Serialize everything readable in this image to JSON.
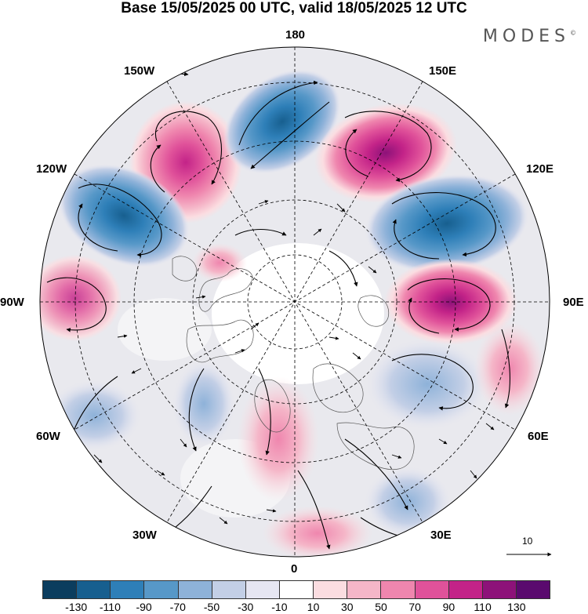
{
  "title": "Base 15/05/2025 00 UTC, valid 18/05/2025 12 UTC",
  "brand": "MODES",
  "brand_mark": "©",
  "longitude_labels": {
    "top": "180",
    "top_left": "150W",
    "top_right": "150E",
    "upper_left": "120W",
    "upper_right": "120E",
    "left": "90W",
    "right": "90E",
    "lower_left": "60W",
    "lower_right": "60E",
    "bottom_left": "30W",
    "bottom_right": "30E",
    "bottom": "0"
  },
  "reference_vector": {
    "label": "10"
  },
  "colorbar": {
    "tick_labels": [
      "-130",
      "-110",
      "-90",
      "-70",
      "-50",
      "-30",
      "-10",
      "10",
      "30",
      "50",
      "70",
      "90",
      "110",
      "130"
    ],
    "colors": [
      "#0b3d5e",
      "#175f8f",
      "#2e7fb8",
      "#5798c8",
      "#8eb2d9",
      "#c3cfe6",
      "#e6e6f2",
      "#ffffff",
      "#fbdde1",
      "#f5b6c8",
      "#ef86ae",
      "#e0529a",
      "#c32388",
      "#8d1279",
      "#5a0a6e"
    ]
  },
  "anomaly_centers": [
    {
      "name": "pink-150W",
      "level": 90
    },
    {
      "name": "blue-180",
      "level": -90
    },
    {
      "name": "purple-150E",
      "level": 110
    },
    {
      "name": "blue-120W",
      "level": -90
    },
    {
      "name": "blue-120E",
      "level": -110
    },
    {
      "name": "pink-90E",
      "level": 110
    },
    {
      "name": "pink-90W",
      "level": 70
    },
    {
      "name": "blue-60E",
      "level": -50
    },
    {
      "name": "pink-0",
      "level": 50
    },
    {
      "name": "blue-60W",
      "level": -50
    }
  ]
}
